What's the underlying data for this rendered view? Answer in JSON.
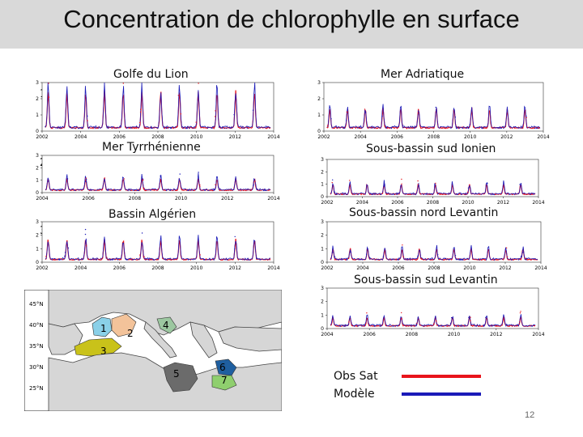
{
  "slide": {
    "title": "Concentration de chlorophylle en surface",
    "page_number": "12"
  },
  "colors": {
    "obs": "#e8141b",
    "model": "#1a1ab8",
    "title_bar": "#d9d9d9"
  },
  "panels": [
    {
      "id": "1",
      "name": "Golfe du Lion",
      "number": "1",
      "yticks": [
        "3",
        "2",
        "1",
        "0"
      ],
      "xticks": [
        "2002",
        "2004",
        "2006",
        "2008",
        "2010",
        "2012",
        "2014"
      ],
      "peak": 0.85
    },
    {
      "id": "2",
      "name": "Mer Tyrrhénienne",
      "number": "2",
      "yticks": [
        "3",
        "2",
        "1",
        "0"
      ],
      "xticks": [
        "2004",
        "2006",
        "2008",
        "2010",
        "2012",
        "2014"
      ],
      "peak": 0.35
    },
    {
      "id": "3",
      "name": "Bassin Algérien",
      "number": "3",
      "yticks": [
        "3",
        "2",
        "1",
        "0"
      ],
      "xticks": [
        "2002",
        "2004",
        "2006",
        "2008",
        "2010",
        "2012",
        "2014"
      ],
      "peak": 0.55
    },
    {
      "id": "4",
      "name": "Mer Adriatique",
      "number": "4",
      "yticks": [
        "3",
        "2",
        "1",
        "0"
      ],
      "xticks": [
        "2002",
        "2004",
        "2006",
        "2008",
        "2010",
        "2012",
        "2014"
      ],
      "peak": 0.45
    },
    {
      "id": "5",
      "name": "Sous-bassin sud Ionien",
      "number": "5",
      "yticks": [
        "3",
        "2",
        "1",
        "0"
      ],
      "xticks": [
        "2002",
        "2004",
        "2006",
        "2008",
        "2010",
        "2012",
        "2014"
      ],
      "peak": 0.3
    },
    {
      "id": "6",
      "name": "Sous-bassin nord Levantin",
      "number": "6",
      "yticks": [
        "3",
        "2",
        "1",
        "0"
      ],
      "xticks": [
        "2002",
        "2004",
        "2006",
        "2008",
        "2010",
        "2012",
        "2014"
      ],
      "peak": 0.3
    },
    {
      "id": "7",
      "name": "Sous-bassin sud Levantin",
      "number": "7",
      "yticks": [
        "3",
        "2",
        "1",
        "0"
      ],
      "xticks": [
        "2004",
        "2006",
        "2008",
        "2010",
        "2012",
        "2014"
      ],
      "peak": 0.25
    }
  ],
  "map": {
    "lat_labels": [
      "45°N",
      "40°N",
      "35°N",
      "30°N",
      "25°N"
    ],
    "region_numbers": [
      "1",
      "2",
      "3",
      "4",
      "5",
      "6",
      "7"
    ],
    "region_colors": {
      "1": "#8ad0e8",
      "2": "#f3c39a",
      "3": "#c9c21a",
      "4": "#9cc7a0",
      "5": "#6b6b6b",
      "6": "#1f5fa0",
      "7": "#8fcf6e"
    }
  },
  "legend": [
    {
      "label": "Obs Sat",
      "color": "#e8141b"
    },
    {
      "label": "Modèle",
      "color": "#1a1ab8"
    }
  ]
}
